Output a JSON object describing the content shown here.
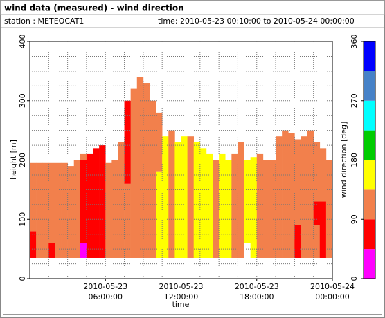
{
  "header": {
    "title": "wind data (measured) - wind direction",
    "station": "station : METEOCAT1",
    "time": "time: 2010-05-23 00:10:00 to 2010-05-24 00:00:00"
  },
  "chart_data": {
    "type": "heatmap",
    "x_label": "time",
    "y_label": "height [m]",
    "xlim": [
      0,
      24
    ],
    "ylim": [
      0,
      400
    ],
    "xticks": [
      {
        "value": 6,
        "label": "2010-05-23 06:00:00"
      },
      {
        "value": 12,
        "label": "2010-05-23 12:00:00"
      },
      {
        "value": 18,
        "label": "2010-05-23 18:00:00"
      },
      {
        "value": 24,
        "label": "2010-05-24 00:00:00"
      }
    ],
    "yticks": [
      0,
      100,
      200,
      300,
      400
    ],
    "xgrid": [
      1.5,
      3,
      4.5,
      6,
      7.5,
      9,
      10.5,
      12,
      13.5,
      15,
      16.5,
      18,
      19.5,
      21,
      22.5
    ],
    "ygrid": [
      25,
      50,
      75,
      100,
      125,
      150,
      175,
      200,
      225,
      250,
      275,
      300,
      325,
      350,
      375
    ],
    "column_width": 0.5,
    "columns": [
      {
        "x": 0,
        "segments": [
          [
            35,
            80,
            60
          ],
          [
            80,
            195,
            110
          ]
        ]
      },
      {
        "x": 0.5,
        "segments": [
          [
            35,
            195,
            110
          ]
        ]
      },
      {
        "x": 1,
        "segments": [
          [
            35,
            195,
            110
          ]
        ]
      },
      {
        "x": 1.5,
        "segments": [
          [
            35,
            60,
            60
          ],
          [
            60,
            195,
            110
          ]
        ]
      },
      {
        "x": 2,
        "segments": [
          [
            35,
            195,
            110
          ]
        ]
      },
      {
        "x": 2.5,
        "segments": [
          [
            35,
            195,
            110
          ]
        ]
      },
      {
        "x": 3,
        "segments": [
          [
            35,
            190,
            110
          ]
        ]
      },
      {
        "x": 3.5,
        "segments": [
          [
            35,
            200,
            110
          ]
        ]
      },
      {
        "x": 4,
        "segments": [
          [
            35,
            60,
            20
          ],
          [
            60,
            200,
            60
          ],
          [
            200,
            210,
            110
          ]
        ]
      },
      {
        "x": 4.5,
        "segments": [
          [
            35,
            210,
            60
          ]
        ]
      },
      {
        "x": 5,
        "segments": [
          [
            35,
            220,
            60
          ]
        ]
      },
      {
        "x": 5.5,
        "segments": [
          [
            35,
            225,
            60
          ]
        ]
      },
      {
        "x": 6,
        "segments": [
          [
            35,
            195,
            110
          ]
        ]
      },
      {
        "x": 6.5,
        "segments": [
          [
            35,
            200,
            110
          ]
        ]
      },
      {
        "x": 7,
        "segments": [
          [
            35,
            230,
            110
          ]
        ]
      },
      {
        "x": 7.5,
        "segments": [
          [
            35,
            160,
            110
          ],
          [
            160,
            300,
            60
          ]
        ]
      },
      {
        "x": 8,
        "segments": [
          [
            35,
            320,
            110
          ]
        ]
      },
      {
        "x": 8.5,
        "segments": [
          [
            35,
            340,
            110
          ]
        ]
      },
      {
        "x": 9,
        "segments": [
          [
            35,
            330,
            110
          ]
        ]
      },
      {
        "x": 9.5,
        "segments": [
          [
            35,
            300,
            110
          ]
        ]
      },
      {
        "x": 10,
        "segments": [
          [
            35,
            180,
            160
          ],
          [
            180,
            280,
            110
          ]
        ]
      },
      {
        "x": 10.5,
        "segments": [
          [
            35,
            240,
            160
          ]
        ]
      },
      {
        "x": 11,
        "segments": [
          [
            35,
            250,
            110
          ]
        ]
      },
      {
        "x": 11.5,
        "segments": [
          [
            35,
            230,
            160
          ]
        ]
      },
      {
        "x": 12,
        "segments": [
          [
            35,
            240,
            160
          ]
        ]
      },
      {
        "x": 12.5,
        "segments": [
          [
            35,
            240,
            110
          ]
        ]
      },
      {
        "x": 13,
        "segments": [
          [
            35,
            230,
            160
          ]
        ]
      },
      {
        "x": 13.5,
        "segments": [
          [
            35,
            220,
            160
          ]
        ]
      },
      {
        "x": 14,
        "segments": [
          [
            35,
            210,
            160
          ]
        ]
      },
      {
        "x": 14.5,
        "segments": [
          [
            35,
            200,
            110
          ]
        ]
      },
      {
        "x": 15,
        "segments": [
          [
            35,
            210,
            160
          ]
        ]
      },
      {
        "x": 15.5,
        "segments": [
          [
            35,
            200,
            160
          ]
        ]
      },
      {
        "x": 16,
        "segments": [
          [
            35,
            210,
            110
          ]
        ]
      },
      {
        "x": 16.5,
        "segments": [
          [
            35,
            230,
            110
          ]
        ]
      },
      {
        "x": 17,
        "segments": [
          [
            60,
            200,
            160
          ]
        ]
      },
      {
        "x": 17.5,
        "segments": [
          [
            35,
            205,
            160
          ]
        ]
      },
      {
        "x": 18,
        "segments": [
          [
            35,
            210,
            110
          ]
        ]
      },
      {
        "x": 18.5,
        "segments": [
          [
            35,
            200,
            110
          ]
        ]
      },
      {
        "x": 19,
        "segments": [
          [
            35,
            200,
            110
          ]
        ]
      },
      {
        "x": 19.5,
        "segments": [
          [
            35,
            240,
            110
          ]
        ]
      },
      {
        "x": 20,
        "segments": [
          [
            35,
            250,
            110
          ]
        ]
      },
      {
        "x": 20.5,
        "segments": [
          [
            35,
            245,
            110
          ]
        ]
      },
      {
        "x": 21,
        "segments": [
          [
            35,
            90,
            60
          ],
          [
            90,
            235,
            110
          ]
        ]
      },
      {
        "x": 21.5,
        "segments": [
          [
            35,
            240,
            110
          ]
        ]
      },
      {
        "x": 22,
        "segments": [
          [
            35,
            250,
            110
          ]
        ]
      },
      {
        "x": 22.5,
        "segments": [
          [
            35,
            90,
            110
          ],
          [
            90,
            130,
            60
          ],
          [
            130,
            230,
            110
          ]
        ]
      },
      {
        "x": 23,
        "segments": [
          [
            35,
            130,
            60
          ],
          [
            130,
            220,
            110
          ]
        ]
      },
      {
        "x": 23.5,
        "segments": [
          [
            35,
            200,
            110
          ]
        ]
      }
    ],
    "colorbar": {
      "label": "wind direction [deg]",
      "bounds": [
        0,
        45,
        90,
        135,
        180,
        225,
        270,
        315,
        360
      ],
      "colors": [
        "#ff00ff",
        "#ff0000",
        "#f2804c",
        "#ffff00",
        "#00cc00",
        "#00ffff",
        "#4682c8",
        "#0000ff"
      ],
      "ticks": [
        0,
        90,
        180,
        270,
        360
      ]
    }
  }
}
